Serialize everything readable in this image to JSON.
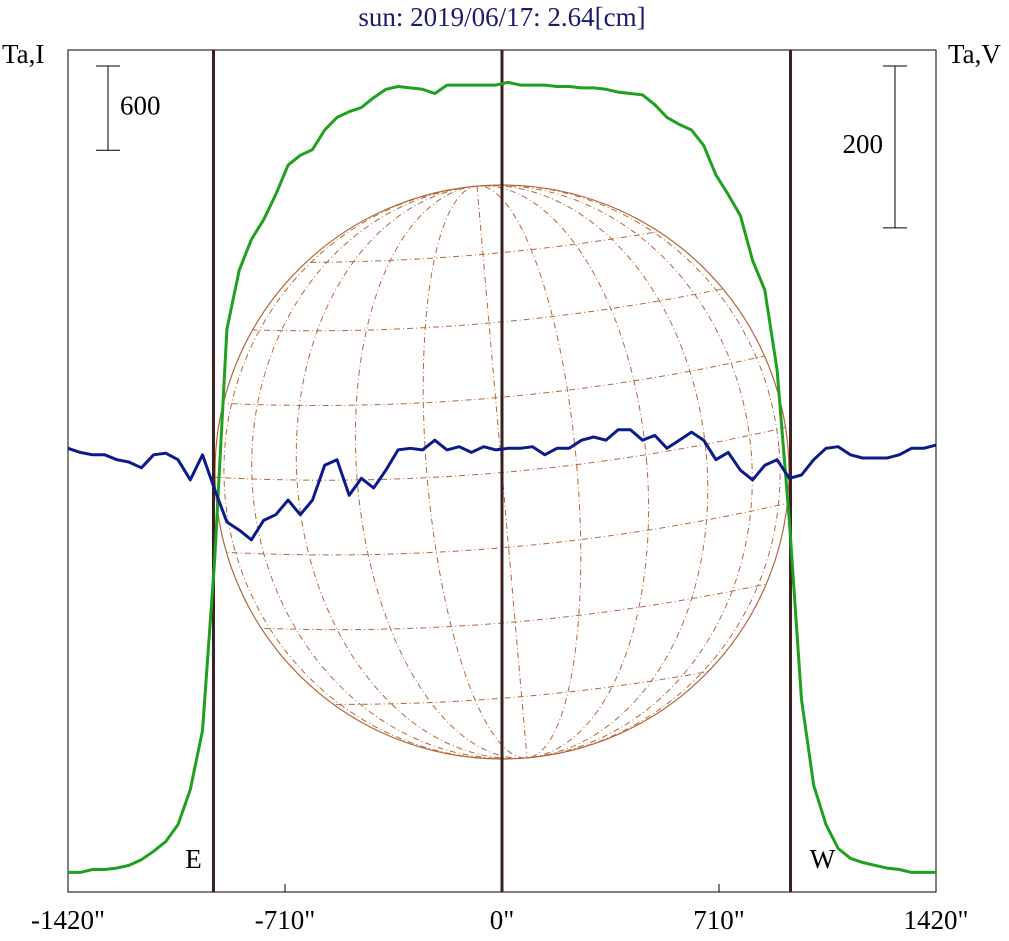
{
  "chart_data": {
    "type": "line",
    "title": "sun: 2019/06/17: 2.64[cm]",
    "ylabel": "Ta,I",
    "y2label": "Ta,V",
    "xlim": [
      -1420,
      1420
    ],
    "xticks": [
      {
        "value": -1420,
        "label": "-1420\""
      },
      {
        "value": -710,
        "label": "-710\""
      },
      {
        "value": 0,
        "label": "0\""
      },
      {
        "value": 710,
        "label": "710\""
      },
      {
        "value": 1420,
        "label": "1420\""
      }
    ],
    "ylim": [
      0,
      6000
    ],
    "y2lim": [
      -520,
      520
    ],
    "scale_bars": [
      {
        "value": 600,
        "axis": "y"
      },
      {
        "value": 200,
        "axis": "y2"
      }
    ],
    "vlines": [
      {
        "value": -944,
        "label": "E"
      },
      {
        "value": 0
      },
      {
        "value": 944,
        "label": "W"
      }
    ],
    "x": [
      -1420,
      -1380,
      -1340,
      -1300,
      -1260,
      -1220,
      -1180,
      -1140,
      -1100,
      -1060,
      -1020,
      -980,
      -940,
      -900,
      -860,
      -820,
      -780,
      -740,
      -700,
      -660,
      -620,
      -580,
      -540,
      -500,
      -460,
      -420,
      -380,
      -340,
      -300,
      -260,
      -220,
      -180,
      -140,
      -100,
      -60,
      -20,
      20,
      60,
      100,
      140,
      180,
      220,
      260,
      300,
      340,
      380,
      420,
      460,
      500,
      540,
      580,
      620,
      660,
      700,
      740,
      780,
      820,
      860,
      900,
      940,
      980,
      1020,
      1060,
      1100,
      1140,
      1180,
      1220,
      1260,
      1300,
      1340,
      1380,
      1420
    ],
    "series": [
      {
        "name": "Ta,I",
        "color": "#1fa01f",
        "axis": "y",
        "values": [
          140,
          140,
          160,
          160,
          170,
          190,
          230,
          290,
          360,
          480,
          730,
          1150,
          2370,
          4010,
          4430,
          4650,
          4790,
          4970,
          5180,
          5250,
          5290,
          5430,
          5520,
          5560,
          5590,
          5660,
          5720,
          5740,
          5730,
          5720,
          5690,
          5750,
          5750,
          5750,
          5750,
          5750,
          5770,
          5750,
          5750,
          5750,
          5740,
          5740,
          5730,
          5730,
          5720,
          5700,
          5690,
          5680,
          5610,
          5520,
          5470,
          5430,
          5320,
          5110,
          4970,
          4820,
          4500,
          4290,
          3720,
          2650,
          1370,
          760,
          480,
          310,
          240,
          210,
          190,
          170,
          160,
          140,
          140,
          140
        ]
      },
      {
        "name": "Ta,V",
        "color": "#0d1a8c",
        "axis": "y2",
        "values": [
          28,
          23,
          20,
          20,
          14,
          11,
          4,
          20,
          22,
          14,
          -11,
          20,
          -23,
          -63,
          -73,
          -85,
          -61,
          -54,
          -36,
          -54,
          -36,
          7,
          14,
          -30,
          -9,
          -21,
          1,
          26,
          28,
          26,
          38,
          26,
          30,
          23,
          30,
          26,
          28,
          28,
          30,
          20,
          28,
          28,
          38,
          42,
          38,
          51,
          51,
          38,
          44,
          28,
          38,
          48,
          38,
          14,
          23,
          1,
          -11,
          7,
          14,
          -9,
          -5,
          14,
          28,
          30,
          20,
          16,
          16,
          16,
          20,
          28,
          28,
          32
        ]
      }
    ]
  }
}
